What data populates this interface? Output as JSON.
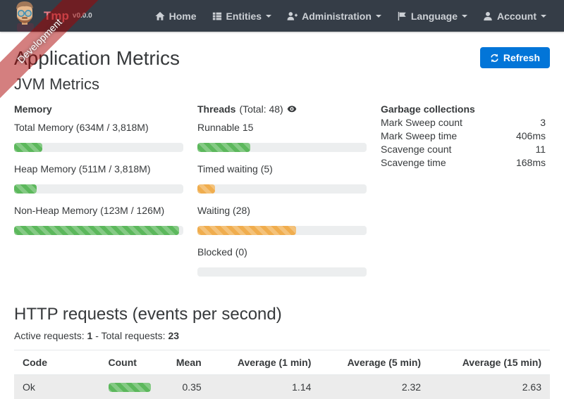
{
  "ribbon": {
    "label": "Development"
  },
  "navbar": {
    "brand": {
      "title": "Tmp",
      "version": "v0.0.0"
    },
    "items": [
      {
        "label": "Home",
        "icon": "home-icon"
      },
      {
        "label": "Entities",
        "icon": "list-icon"
      },
      {
        "label": "Administration",
        "icon": "user-plus-icon"
      },
      {
        "label": "Language",
        "icon": "flag-icon"
      },
      {
        "label": "Account",
        "icon": "user-icon"
      }
    ]
  },
  "page": {
    "title": "Application Metrics",
    "refresh_label": "Refresh",
    "jvm": {
      "heading": "JVM Metrics",
      "memory": {
        "heading": "Memory",
        "bars": [
          {
            "label": "Total Memory (634M / 3,818M)",
            "percent": 16.6,
            "color": "green"
          },
          {
            "label": "Heap Memory (511M / 3,818M)",
            "percent": 13.4,
            "color": "green"
          },
          {
            "label": "Non-Heap Memory (123M / 126M)",
            "percent": 97.6,
            "color": "green"
          }
        ]
      },
      "threads": {
        "heading": "Threads",
        "total_label": "(Total: 48)",
        "bars": [
          {
            "label": "Runnable 15",
            "percent": 31.3,
            "color": "green"
          },
          {
            "label": "Timed waiting (5)",
            "percent": 10.4,
            "color": "orange"
          },
          {
            "label": "Waiting (28)",
            "percent": 58.3,
            "color": "orange"
          },
          {
            "label": "Blocked (0)",
            "percent": 0,
            "color": "orange"
          }
        ]
      },
      "gc": {
        "heading": "Garbage collections",
        "rows": [
          {
            "label": "Mark Sweep count",
            "value": "3"
          },
          {
            "label": "Mark Sweep time",
            "value": "406ms"
          },
          {
            "label": "Scavenge count",
            "value": "11"
          },
          {
            "label": "Scavenge time",
            "value": "168ms"
          }
        ]
      }
    },
    "http": {
      "heading": "HTTP requests (events per second)",
      "active_label": "Active requests:",
      "active_value": "1",
      "dash": "-",
      "total_label": "Total requests:",
      "total_value": "23",
      "table": {
        "headers": [
          "Code",
          "Count",
          "Mean",
          "Average (1 min)",
          "Average (5 min)",
          "Average (15 min)"
        ],
        "rows": [
          {
            "code": "Ok",
            "count_percent": 100,
            "count_color": "green",
            "mean": "0.35",
            "avg1": "1.14",
            "avg5": "2.32",
            "avg15": "2.63"
          }
        ]
      }
    }
  },
  "colors": {
    "green": "#5cb85c",
    "orange": "#f0ad4e",
    "primary": "#0275d8",
    "navbar_bg": "#353d47",
    "ribbon_bg": "rgba(170,0,0,0.5)",
    "brand_title": "#ea7d87",
    "track": "#eceeef",
    "stripe_row": "#ececec"
  }
}
